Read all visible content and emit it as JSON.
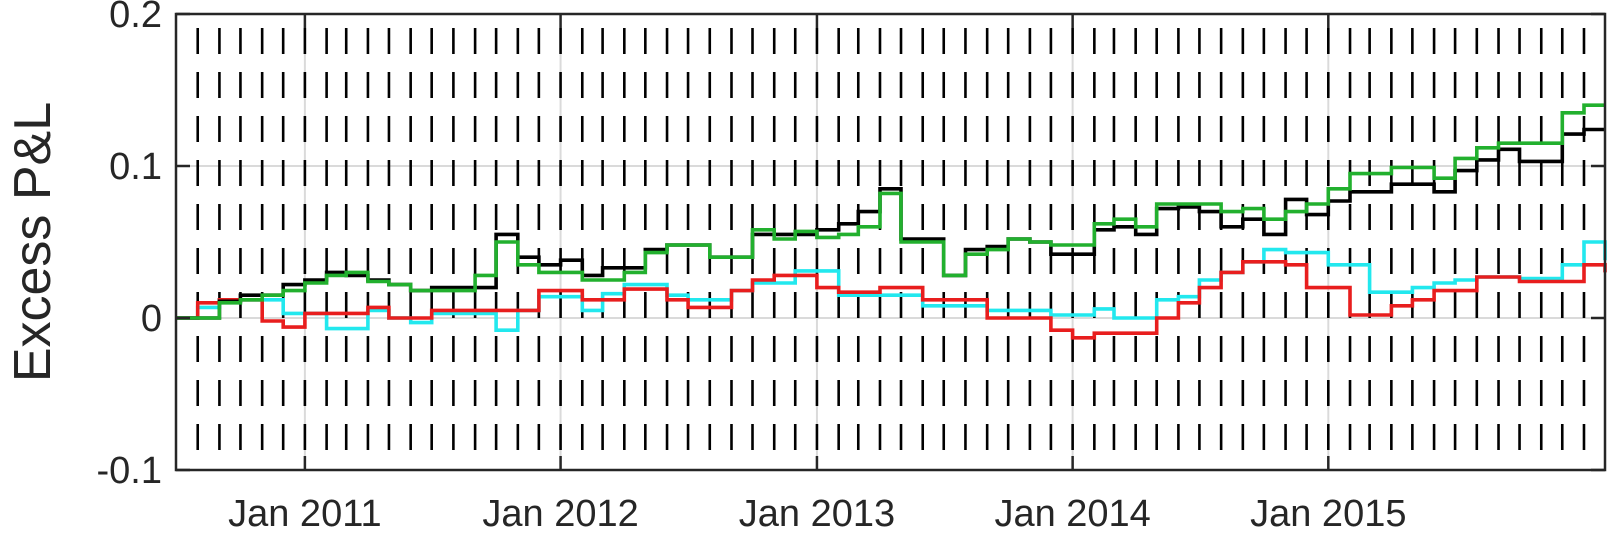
{
  "chart_data": {
    "type": "line",
    "title": "",
    "xlabel": "",
    "ylabel": "Excess P&L",
    "ylim": [
      -0.1,
      0.2
    ],
    "yticks": [
      {
        "value": -0.1,
        "label": "-0.1"
      },
      {
        "value": 0,
        "label": "0"
      },
      {
        "value": 0.1,
        "label": "0.1"
      },
      {
        "value": 0.2,
        "label": "0.2"
      }
    ],
    "xlim": [
      "2010-07-01",
      "2016-01-31"
    ],
    "xticks": [
      {
        "value": "2011-01-01",
        "label": "Jan 2011"
      },
      {
        "value": "2012-01-01",
        "label": "Jan 2012"
      },
      {
        "value": "2013-01-01",
        "label": "Jan 2013"
      },
      {
        "value": "2014-01-01",
        "label": "Jan 2014"
      },
      {
        "value": "2015-01-01",
        "label": "Jan 2015"
      }
    ],
    "grid": true,
    "legend": "none",
    "colors": {
      "black": "#000000",
      "green": "#22b02e",
      "cyan": "#22e8ee",
      "red": "#e81e1e",
      "grid": "#dadada",
      "axis": "#262626"
    },
    "monthly_markers": {
      "start": "2010-08-01",
      "end": "2016-01-01",
      "ymin": -0.1,
      "ymax": 0.2,
      "color": "#000000"
    },
    "x": [
      "2010-07-01",
      "2010-08-01",
      "2010-09-01",
      "2010-10-01",
      "2010-11-01",
      "2010-12-01",
      "2011-01-01",
      "2011-02-01",
      "2011-03-01",
      "2011-04-01",
      "2011-05-01",
      "2011-06-01",
      "2011-07-01",
      "2011-08-01",
      "2011-09-01",
      "2011-10-01",
      "2011-11-01",
      "2011-12-01",
      "2012-01-01",
      "2012-02-01",
      "2012-03-01",
      "2012-04-01",
      "2012-05-01",
      "2012-06-01",
      "2012-07-01",
      "2012-08-01",
      "2012-09-01",
      "2012-10-01",
      "2012-11-01",
      "2012-12-01",
      "2013-01-01",
      "2013-02-01",
      "2013-03-01",
      "2013-04-01",
      "2013-05-01",
      "2013-06-01",
      "2013-07-01",
      "2013-08-01",
      "2013-09-01",
      "2013-10-01",
      "2013-11-01",
      "2013-12-01",
      "2014-01-01",
      "2014-02-01",
      "2014-03-01",
      "2014-04-01",
      "2014-05-01",
      "2014-06-01",
      "2014-07-01",
      "2014-08-01",
      "2014-09-01",
      "2014-10-01",
      "2014-11-01",
      "2014-12-01",
      "2015-01-01",
      "2015-02-01",
      "2015-03-01",
      "2015-04-01",
      "2015-05-01",
      "2015-06-01",
      "2015-07-01",
      "2015-08-01",
      "2015-09-01",
      "2015-10-01",
      "2015-11-01",
      "2015-12-01",
      "2016-01-01",
      "2016-01-31"
    ],
    "series": [
      {
        "color": "#22e8ee",
        "values": [
          0.0,
          0.007,
          0.012,
          0.012,
          0.012,
          0.003,
          0.003,
          -0.007,
          -0.007,
          0.005,
          0.0,
          -0.003,
          0.003,
          0.003,
          0.003,
          -0.008,
          0.005,
          0.014,
          0.014,
          0.005,
          0.016,
          0.022,
          0.022,
          0.015,
          0.012,
          0.012,
          0.018,
          0.023,
          0.023,
          0.031,
          0.031,
          0.015,
          0.015,
          0.015,
          0.015,
          0.008,
          0.008,
          0.008,
          0.005,
          0.005,
          0.005,
          0.002,
          0.002,
          0.006,
          0.0,
          0.0,
          0.012,
          0.014,
          0.025,
          0.03,
          0.037,
          0.045,
          0.043,
          0.043,
          0.035,
          0.035,
          0.017,
          0.017,
          0.02,
          0.023,
          0.025,
          0.027,
          0.027,
          0.026,
          0.026,
          0.035,
          0.05,
          0.038
        ]
      },
      {
        "color": "#e81e1e",
        "values": [
          0.0,
          0.01,
          0.012,
          0.012,
          -0.002,
          -0.006,
          0.003,
          0.003,
          0.003,
          0.007,
          0.0,
          0.0,
          0.005,
          0.005,
          0.005,
          0.005,
          0.005,
          0.018,
          0.018,
          0.012,
          0.012,
          0.019,
          0.019,
          0.012,
          0.007,
          0.007,
          0.018,
          0.025,
          0.028,
          0.028,
          0.02,
          0.017,
          0.017,
          0.02,
          0.02,
          0.012,
          0.012,
          0.012,
          0.0,
          0.0,
          0.0,
          -0.008,
          -0.013,
          -0.01,
          -0.01,
          -0.01,
          0.0,
          0.01,
          0.02,
          0.03,
          0.037,
          0.037,
          0.035,
          0.02,
          0.02,
          0.002,
          0.002,
          0.008,
          0.012,
          0.018,
          0.018,
          0.027,
          0.027,
          0.024,
          0.024,
          0.024,
          0.035,
          0.03
        ]
      },
      {
        "color": "#000000",
        "values": [
          0.0,
          0.0,
          0.011,
          0.015,
          0.015,
          0.022,
          0.025,
          0.03,
          0.028,
          0.025,
          0.022,
          0.018,
          0.02,
          0.02,
          0.02,
          0.055,
          0.04,
          0.035,
          0.038,
          0.028,
          0.033,
          0.033,
          0.045,
          0.048,
          0.048,
          0.04,
          0.04,
          0.055,
          0.055,
          0.055,
          0.058,
          0.062,
          0.07,
          0.085,
          0.052,
          0.052,
          0.028,
          0.045,
          0.047,
          0.052,
          0.05,
          0.042,
          0.042,
          0.058,
          0.06,
          0.055,
          0.072,
          0.073,
          0.07,
          0.06,
          0.065,
          0.055,
          0.078,
          0.068,
          0.077,
          0.083,
          0.083,
          0.088,
          0.088,
          0.083,
          0.097,
          0.104,
          0.111,
          0.103,
          0.103,
          0.121,
          0.124,
          0.124
        ]
      },
      {
        "color": "#22b02e",
        "values": [
          0.0,
          0.0,
          0.01,
          0.012,
          0.015,
          0.018,
          0.023,
          0.028,
          0.03,
          0.024,
          0.022,
          0.018,
          0.018,
          0.018,
          0.028,
          0.05,
          0.035,
          0.03,
          0.03,
          0.025,
          0.025,
          0.03,
          0.043,
          0.048,
          0.048,
          0.04,
          0.04,
          0.058,
          0.052,
          0.057,
          0.053,
          0.055,
          0.06,
          0.082,
          0.05,
          0.05,
          0.028,
          0.042,
          0.045,
          0.052,
          0.05,
          0.048,
          0.048,
          0.062,
          0.065,
          0.06,
          0.075,
          0.075,
          0.075,
          0.07,
          0.072,
          0.065,
          0.07,
          0.075,
          0.085,
          0.095,
          0.095,
          0.099,
          0.099,
          0.092,
          0.105,
          0.112,
          0.115,
          0.115,
          0.115,
          0.135,
          0.14,
          0.14
        ]
      }
    ]
  }
}
